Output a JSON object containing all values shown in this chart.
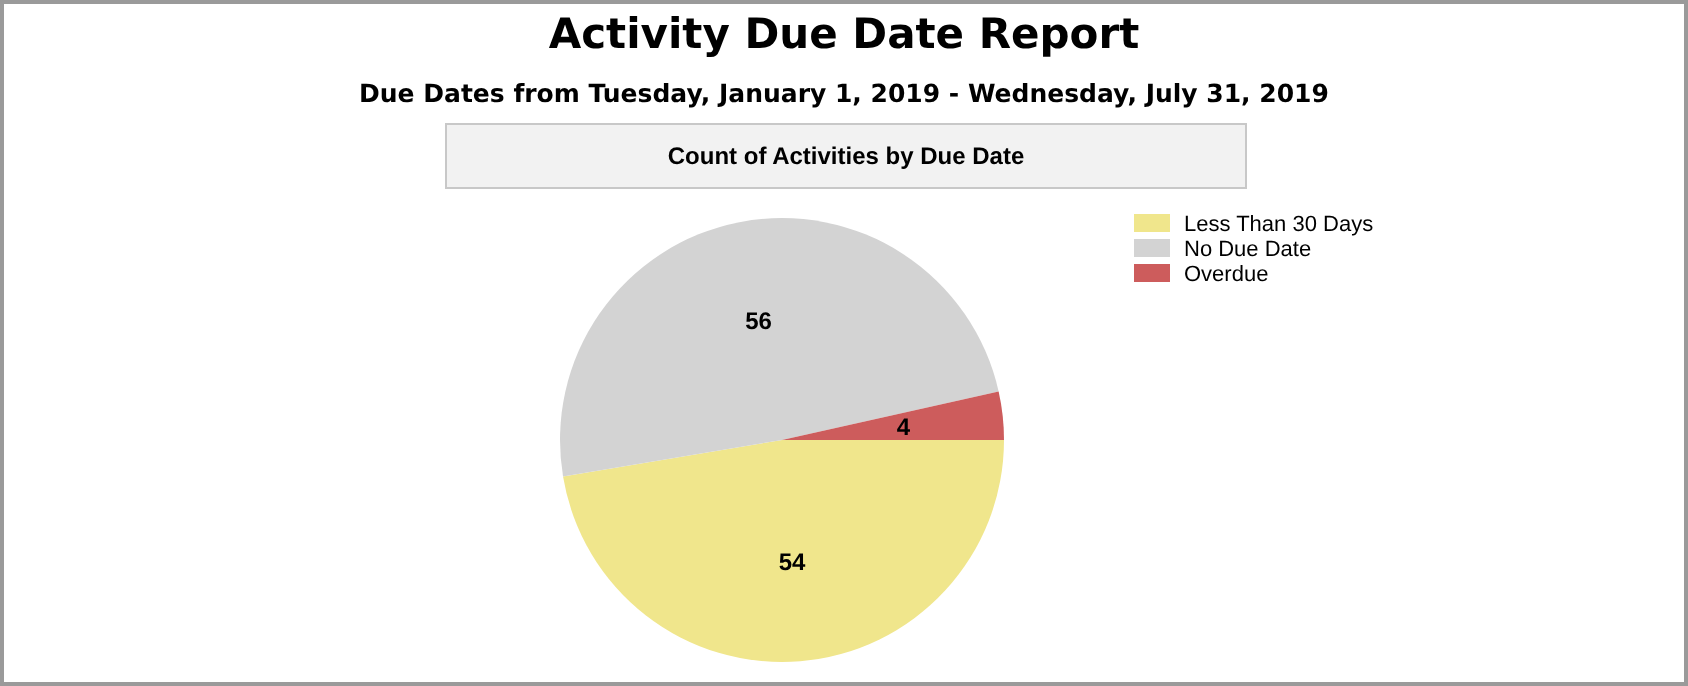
{
  "chart_data": {
    "type": "pie",
    "title": "Activity Due Date Report",
    "subtitle": "Due Dates from Tuesday, January 1, 2019 - Wednesday, July 31, 2019",
    "annotations": [
      "Count of Activities by Due Date"
    ],
    "categories": [
      "Less Than 30 Days",
      "No Due Date",
      "Overdue"
    ],
    "values": [
      54,
      56,
      4
    ],
    "colors": [
      "#f0e68c",
      "#d3d3d3",
      "#cd5c5c"
    ],
    "data_labels": true,
    "legend": "top right"
  }
}
